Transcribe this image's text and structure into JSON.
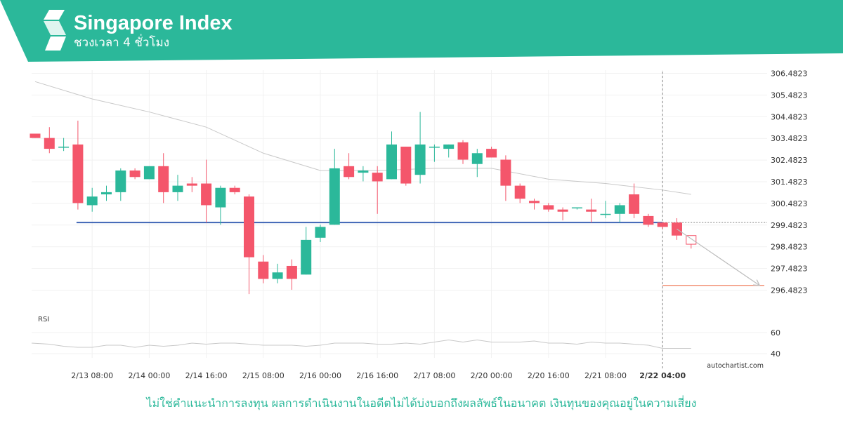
{
  "header": {
    "title": "Singapore Index",
    "subtitle": "ชวงเวลา 4 ชั่วโมง",
    "color": "#2bb89a",
    "logo_icon": "autochartist-s-logo-icon"
  },
  "footer": {
    "disclaimer": "ไม่ใช่คำแนะนำการลงทุน ผลการดำเนินงานในอดีตไม่ได้บ่งบอกถึงผลลัพธ์ในอนาคต เงินทุนของคุณอยู่ในความเสี่ยง",
    "brand": "autochartist.com"
  },
  "chart_data": {
    "type": "candlestick",
    "up_color": "#2bb89a",
    "down_color": "#f4566b",
    "price_ticks": [
      "306.4823",
      "305.4823",
      "304.4823",
      "303.4823",
      "302.4823",
      "301.4823",
      "300.4823",
      "299.4823",
      "298.4823",
      "297.4823",
      "296.4823"
    ],
    "x_ticks": [
      {
        "label": "2/13 08:00",
        "i": 4
      },
      {
        "label": "2/14 00:00",
        "i": 8
      },
      {
        "label": "2/14 16:00",
        "i": 12
      },
      {
        "label": "2/15 08:00",
        "i": 16
      },
      {
        "label": "2/16 00:00",
        "i": 20
      },
      {
        "label": "2/16 16:00",
        "i": 24
      },
      {
        "label": "2/17 08:00",
        "i": 28
      },
      {
        "label": "2/20 00:00",
        "i": 32
      },
      {
        "label": "2/20 16:00",
        "i": 36
      },
      {
        "label": "2/21 08:00",
        "i": 40
      },
      {
        "label": "2/22 04:00",
        "i": 44,
        "bold": true
      }
    ],
    "candles": [
      {
        "o": 303.7,
        "c": 303.5,
        "h": 303.7,
        "l": 303.5
      },
      {
        "o": 303.5,
        "c": 303.0,
        "h": 304.0,
        "l": 302.8
      },
      {
        "o": 303.1,
        "c": 303.1,
        "h": 303.5,
        "l": 302.9
      },
      {
        "o": 303.2,
        "c": 300.5,
        "h": 304.3,
        "l": 300.2
      },
      {
        "o": 300.4,
        "c": 300.8,
        "h": 301.2,
        "l": 300.1
      },
      {
        "o": 300.9,
        "c": 301.0,
        "h": 301.3,
        "l": 300.6
      },
      {
        "o": 301.0,
        "c": 302.0,
        "h": 302.1,
        "l": 300.6
      },
      {
        "o": 302.0,
        "c": 301.7,
        "h": 302.1,
        "l": 301.6
      },
      {
        "o": 301.6,
        "c": 302.2,
        "h": 302.2,
        "l": 301.6
      },
      {
        "o": 302.2,
        "c": 301.0,
        "h": 302.8,
        "l": 300.5
      },
      {
        "o": 301.0,
        "c": 301.3,
        "h": 301.8,
        "l": 300.6
      },
      {
        "o": 301.4,
        "c": 301.3,
        "h": 301.7,
        "l": 301.0
      },
      {
        "o": 301.4,
        "c": 300.4,
        "h": 302.5,
        "l": 299.6
      },
      {
        "o": 300.3,
        "c": 301.2,
        "h": 301.3,
        "l": 299.5
      },
      {
        "o": 301.2,
        "c": 301.0,
        "h": 301.3,
        "l": 300.9
      },
      {
        "o": 300.8,
        "c": 298.0,
        "h": 300.9,
        "l": 296.3
      },
      {
        "o": 297.8,
        "c": 297.0,
        "h": 298.1,
        "l": 296.8
      },
      {
        "o": 297.0,
        "c": 297.3,
        "h": 297.7,
        "l": 296.8
      },
      {
        "o": 297.6,
        "c": 297.0,
        "h": 297.9,
        "l": 296.5
      },
      {
        "o": 297.2,
        "c": 298.8,
        "h": 299.4,
        "l": 297.2
      },
      {
        "o": 298.9,
        "c": 299.4,
        "h": 299.5,
        "l": 298.7
      },
      {
        "o": 299.5,
        "c": 302.1,
        "h": 303.0,
        "l": 299.5
      },
      {
        "o": 302.2,
        "c": 301.7,
        "h": 302.8,
        "l": 301.6
      },
      {
        "o": 301.9,
        "c": 302.0,
        "h": 302.2,
        "l": 301.5
      },
      {
        "o": 301.9,
        "c": 301.5,
        "h": 302.2,
        "l": 300.0
      },
      {
        "o": 301.6,
        "c": 303.2,
        "h": 303.8,
        "l": 301.6
      },
      {
        "o": 303.1,
        "c": 301.4,
        "h": 303.1,
        "l": 301.3
      },
      {
        "o": 301.8,
        "c": 303.2,
        "h": 304.7,
        "l": 301.4
      },
      {
        "o": 303.1,
        "c": 303.1,
        "h": 303.2,
        "l": 302.4
      },
      {
        "o": 303.0,
        "c": 303.2,
        "h": 303.2,
        "l": 302.6
      },
      {
        "o": 303.3,
        "c": 302.5,
        "h": 303.4,
        "l": 302.3
      },
      {
        "o": 302.3,
        "c": 302.8,
        "h": 303.0,
        "l": 301.7
      },
      {
        "o": 303.0,
        "c": 302.6,
        "h": 303.1,
        "l": 302.6
      },
      {
        "o": 302.5,
        "c": 301.3,
        "h": 302.7,
        "l": 300.6
      },
      {
        "o": 301.3,
        "c": 300.7,
        "h": 301.4,
        "l": 300.5
      },
      {
        "o": 300.6,
        "c": 300.5,
        "h": 300.7,
        "l": 300.2
      },
      {
        "o": 300.4,
        "c": 300.2,
        "h": 300.5,
        "l": 300.1
      },
      {
        "o": 300.2,
        "c": 300.1,
        "h": 300.3,
        "l": 299.7
      },
      {
        "o": 300.3,
        "c": 300.3,
        "h": 300.3,
        "l": 300.2
      },
      {
        "o": 300.2,
        "c": 300.1,
        "h": 300.7,
        "l": 299.6
      },
      {
        "o": 300.0,
        "c": 300.0,
        "h": 300.6,
        "l": 299.8
      },
      {
        "o": 300.0,
        "c": 300.4,
        "h": 300.5,
        "l": 299.6
      },
      {
        "o": 300.9,
        "c": 300.0,
        "h": 301.4,
        "l": 299.8
      },
      {
        "o": 299.9,
        "c": 299.5,
        "h": 300.0,
        "l": 299.4
      },
      {
        "o": 299.6,
        "c": 299.4,
        "h": 299.6,
        "l": 299.3
      },
      {
        "o": 299.6,
        "c": 299.0,
        "h": 299.8,
        "l": 298.8
      },
      {
        "o": 299.0,
        "c": 298.6,
        "h": 299.0,
        "l": 298.4
      }
    ],
    "moving_average": [
      {
        "i": 0,
        "v": 306.1
      },
      {
        "i": 4,
        "v": 305.3
      },
      {
        "i": 8,
        "v": 304.7
      },
      {
        "i": 12,
        "v": 304.0
      },
      {
        "i": 16,
        "v": 302.8
      },
      {
        "i": 20,
        "v": 302.0
      },
      {
        "i": 24,
        "v": 302.0
      },
      {
        "i": 28,
        "v": 302.1
      },
      {
        "i": 32,
        "v": 302.1
      },
      {
        "i": 36,
        "v": 301.6
      },
      {
        "i": 40,
        "v": 301.4
      },
      {
        "i": 44,
        "v": 301.1
      },
      {
        "i": 46,
        "v": 300.9
      }
    ],
    "support_level": 299.6,
    "target_level": 296.7,
    "forecast_path": [
      {
        "i": 45,
        "v": 299.3
      },
      {
        "i": 50.8,
        "v": 296.7
      }
    ],
    "current_time_index": 44,
    "rsi": {
      "label": "RSI",
      "ticks": [
        60,
        40
      ],
      "values": [
        50,
        49,
        47,
        46,
        46,
        48,
        48,
        46,
        48,
        47,
        48,
        50,
        49,
        50,
        50,
        49,
        48,
        48,
        48,
        47,
        48,
        50,
        50,
        50,
        49,
        49,
        50,
        49,
        51,
        53,
        51,
        53,
        51,
        51,
        51,
        52,
        50,
        50,
        49,
        51,
        50,
        50,
        49,
        48,
        45,
        45,
        45
      ]
    }
  }
}
